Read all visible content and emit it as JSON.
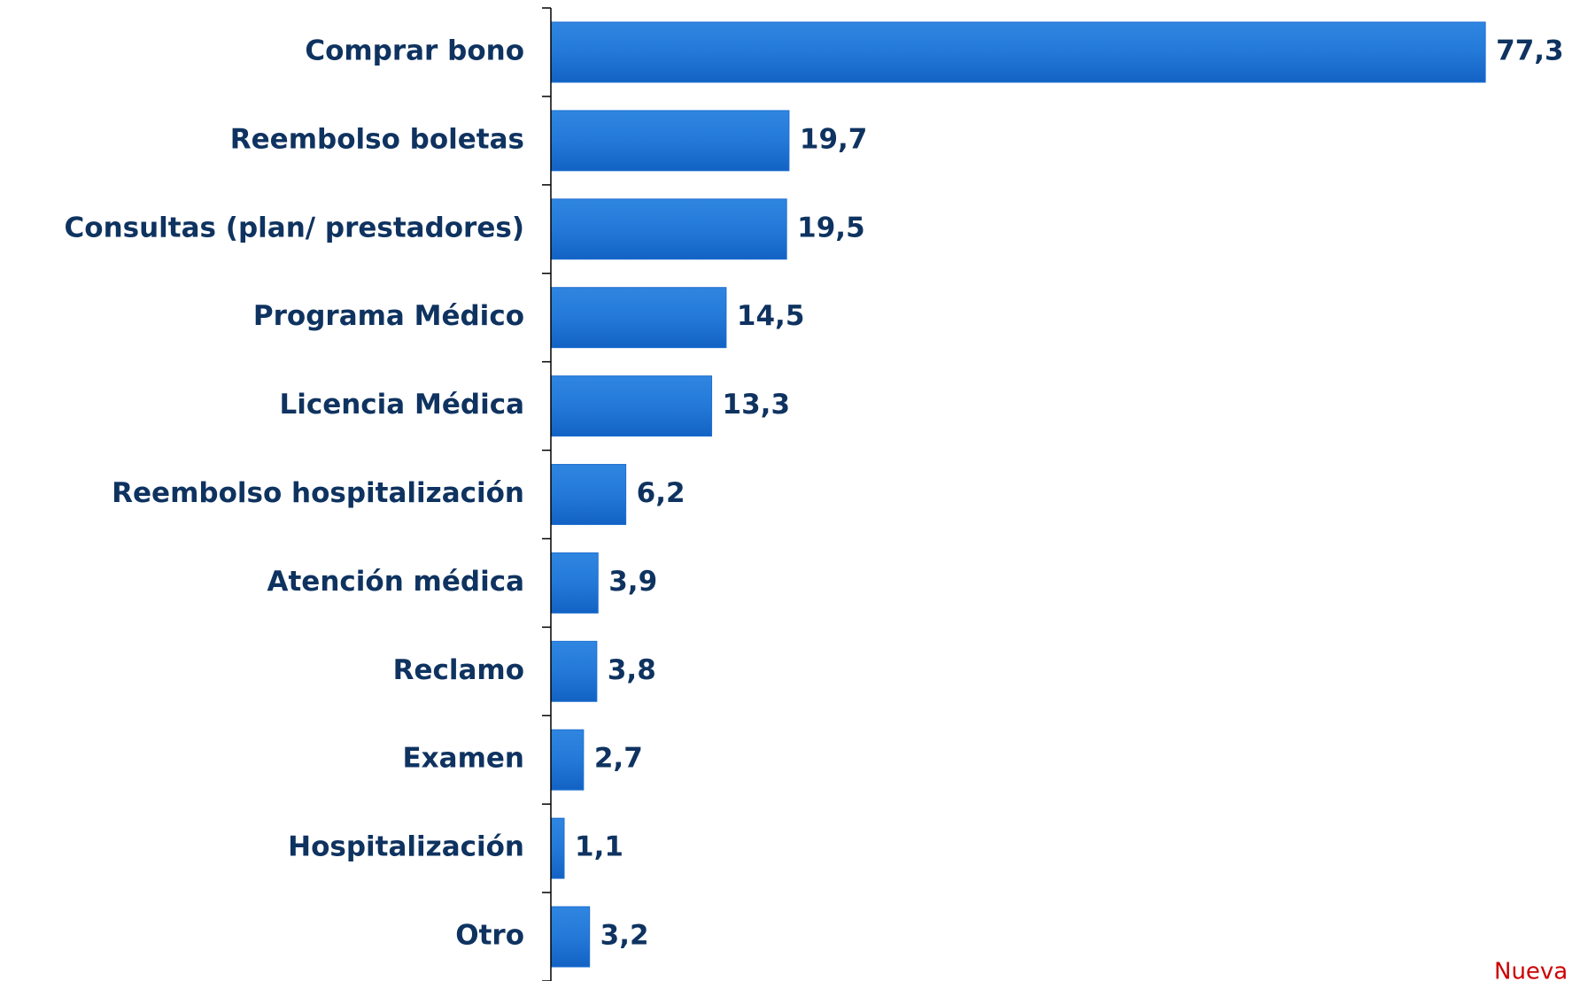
{
  "chart_data": {
    "type": "bar",
    "orientation": "horizontal",
    "categories": [
      "Comprar bono",
      "Reembolso boletas",
      "Consultas (plan/ prestadores)",
      "Programa Médico",
      "Licencia Médica",
      "Reembolso hospitalización",
      "Atención médica",
      "Reclamo",
      "Examen",
      "Hospitalización",
      "Otro"
    ],
    "values": [
      77.3,
      19.7,
      19.5,
      14.5,
      13.3,
      6.2,
      3.9,
      3.8,
      2.7,
      1.1,
      3.2
    ],
    "value_labels": [
      "77,3",
      "19,7",
      "19,5",
      "14,5",
      "13,3",
      "6,2",
      "3,9",
      "3,8",
      "2,7",
      "1,1",
      "3,2"
    ],
    "color": "#1f6fd1",
    "xlim": [
      0,
      80
    ],
    "annotation": "Nueva"
  }
}
